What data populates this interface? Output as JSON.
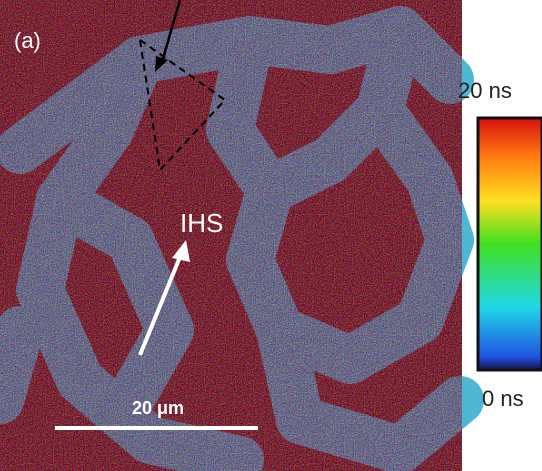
{
  "panel_label": "(a)",
  "annotation": "IHS",
  "scale_bar": "20 μm",
  "colorbar": {
    "max_label": "20 ns",
    "min_label": "0 ns"
  }
}
